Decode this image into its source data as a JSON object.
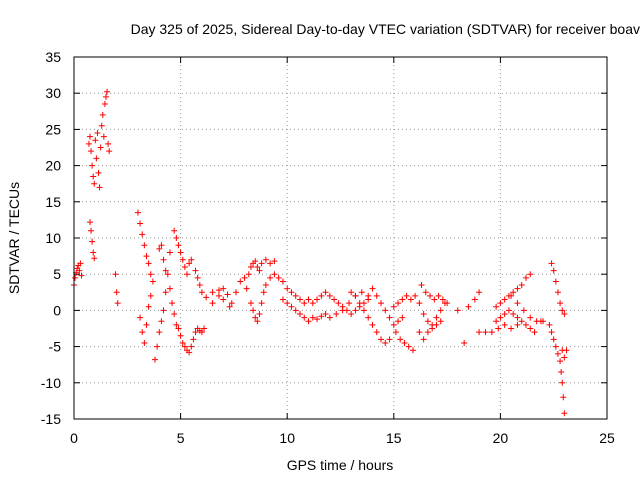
{
  "chart_data": {
    "type": "scatter",
    "title": "Day 325 of 2025, Sidereal Day-to-day VTEC variation (SDTVAR) for receiver boav",
    "xlabel": "GPS time / hours",
    "ylabel": "SDTVAR / TECUs",
    "xlim": [
      0,
      25
    ],
    "ylim": [
      -15,
      35
    ],
    "xticks": [
      0,
      5,
      10,
      15,
      20,
      25
    ],
    "yticks": [
      -15,
      -10,
      -5,
      0,
      5,
      10,
      15,
      20,
      25,
      30,
      35
    ],
    "grid": true,
    "marker": "+",
    "series": [
      {
        "name": "SDTVAR",
        "color": "#ff0000",
        "points": [
          [
            0.0,
            3.5
          ],
          [
            0.05,
            4.5
          ],
          [
            0.1,
            5.2
          ],
          [
            0.15,
            5.8
          ],
          [
            0.2,
            6.2
          ],
          [
            0.25,
            5.5
          ],
          [
            0.3,
            6.5
          ],
          [
            0.35,
            4.8
          ],
          [
            0.7,
            23.0
          ],
          [
            0.75,
            24.0
          ],
          [
            0.8,
            22.0
          ],
          [
            0.85,
            20.0
          ],
          [
            0.9,
            18.5
          ],
          [
            0.95,
            17.5
          ],
          [
            1.0,
            23.5
          ],
          [
            1.05,
            21.0
          ],
          [
            1.1,
            24.5
          ],
          [
            1.15,
            19.0
          ],
          [
            1.2,
            17.0
          ],
          [
            1.25,
            22.5
          ],
          [
            1.3,
            25.5
          ],
          [
            1.35,
            27.0
          ],
          [
            1.4,
            24.0
          ],
          [
            1.45,
            28.5
          ],
          [
            1.5,
            29.5
          ],
          [
            1.55,
            30.2
          ],
          [
            1.6,
            23.0
          ],
          [
            1.65,
            22.0
          ],
          [
            0.75,
            12.2
          ],
          [
            0.8,
            11.0
          ],
          [
            0.85,
            9.5
          ],
          [
            0.9,
            8.0
          ],
          [
            0.95,
            7.2
          ],
          [
            1.95,
            5.0
          ],
          [
            2.0,
            2.5
          ],
          [
            2.05,
            1.0
          ],
          [
            3.0,
            13.5
          ],
          [
            3.1,
            12.0
          ],
          [
            3.2,
            10.5
          ],
          [
            3.3,
            9.0
          ],
          [
            3.4,
            7.5
          ],
          [
            3.5,
            6.5
          ],
          [
            3.6,
            5.0
          ],
          [
            3.7,
            4.0
          ],
          [
            3.1,
            -1.0
          ],
          [
            3.2,
            -3.0
          ],
          [
            3.3,
            -4.5
          ],
          [
            3.4,
            -2.0
          ],
          [
            3.5,
            0.5
          ],
          [
            3.6,
            2.0
          ],
          [
            3.8,
            -6.8
          ],
          [
            3.9,
            -5.0
          ],
          [
            4.0,
            -3.0
          ],
          [
            4.1,
            -1.5
          ],
          [
            4.2,
            0.0
          ],
          [
            4.3,
            2.5
          ],
          [
            4.4,
            5.0
          ],
          [
            4.5,
            8.0
          ],
          [
            4.0,
            8.5
          ],
          [
            4.1,
            9.0
          ],
          [
            4.2,
            7.0
          ],
          [
            4.3,
            5.5
          ],
          [
            4.5,
            3.0
          ],
          [
            4.6,
            1.0
          ],
          [
            4.7,
            -0.5
          ],
          [
            4.8,
            -2.0
          ],
          [
            4.7,
            11.0
          ],
          [
            4.8,
            10.0
          ],
          [
            4.9,
            9.0
          ],
          [
            5.0,
            8.0
          ],
          [
            5.1,
            7.0
          ],
          [
            5.2,
            6.0
          ],
          [
            5.3,
            5.0
          ],
          [
            5.4,
            6.5
          ],
          [
            5.5,
            7.0
          ],
          [
            4.9,
            -2.5
          ],
          [
            5.0,
            -3.5
          ],
          [
            5.1,
            -4.5
          ],
          [
            5.2,
            -5.0
          ],
          [
            5.3,
            -5.5
          ],
          [
            5.4,
            -5.8
          ],
          [
            5.5,
            -5.0
          ],
          [
            5.6,
            -4.0
          ],
          [
            5.7,
            -3.0
          ],
          [
            5.8,
            -2.5
          ],
          [
            5.9,
            -2.8
          ],
          [
            6.0,
            -3.0
          ],
          [
            6.1,
            -2.5
          ],
          [
            5.7,
            5.5
          ],
          [
            5.8,
            4.5
          ],
          [
            5.9,
            3.5
          ],
          [
            6.0,
            2.5
          ],
          [
            6.2,
            1.8
          ],
          [
            6.5,
            2.5
          ],
          [
            6.8,
            2.0
          ],
          [
            7.0,
            1.5
          ],
          [
            7.2,
            2.2
          ],
          [
            7.4,
            1.0
          ],
          [
            7.6,
            2.5
          ],
          [
            7.8,
            4.0
          ],
          [
            8.0,
            4.5
          ],
          [
            6.5,
            1.0
          ],
          [
            6.8,
            2.8
          ],
          [
            7.0,
            3.0
          ],
          [
            7.3,
            0.5
          ],
          [
            8.1,
            3.0
          ],
          [
            8.2,
            5.0
          ],
          [
            8.3,
            6.0
          ],
          [
            8.4,
            6.5
          ],
          [
            8.5,
            6.8
          ],
          [
            8.6,
            6.0
          ],
          [
            8.7,
            5.5
          ],
          [
            8.8,
            6.5
          ],
          [
            9.0,
            7.0
          ],
          [
            9.2,
            6.5
          ],
          [
            9.4,
            6.8
          ],
          [
            8.3,
            1.0
          ],
          [
            8.4,
            0.0
          ],
          [
            8.5,
            -1.0
          ],
          [
            8.6,
            -1.5
          ],
          [
            8.7,
            -0.5
          ],
          [
            8.8,
            1.0
          ],
          [
            8.9,
            2.5
          ],
          [
            9.0,
            3.5
          ],
          [
            9.2,
            4.5
          ],
          [
            9.4,
            5.0
          ],
          [
            9.6,
            4.5
          ],
          [
            9.8,
            4.0
          ],
          [
            10.0,
            3.0
          ],
          [
            10.2,
            2.5
          ],
          [
            10.4,
            2.0
          ],
          [
            10.6,
            1.5
          ],
          [
            10.8,
            1.0
          ],
          [
            11.0,
            1.5
          ],
          [
            11.2,
            1.0
          ],
          [
            11.4,
            1.5
          ],
          [
            11.6,
            2.0
          ],
          [
            11.8,
            2.5
          ],
          [
            9.8,
            1.5
          ],
          [
            10.0,
            1.0
          ],
          [
            10.2,
            0.5
          ],
          [
            10.4,
            0.0
          ],
          [
            10.6,
            -0.5
          ],
          [
            10.8,
            -1.0
          ],
          [
            11.0,
            -1.5
          ],
          [
            11.2,
            -1.0
          ],
          [
            11.4,
            -1.2
          ],
          [
            11.6,
            -0.8
          ],
          [
            11.8,
            -0.5
          ],
          [
            12.0,
            2.0
          ],
          [
            12.2,
            1.5
          ],
          [
            12.4,
            1.0
          ],
          [
            12.6,
            0.5
          ],
          [
            12.8,
            0.0
          ],
          [
            13.0,
            -0.5
          ],
          [
            13.2,
            0.0
          ],
          [
            13.4,
            0.5
          ],
          [
            13.6,
            1.0
          ],
          [
            13.8,
            1.5
          ],
          [
            12.0,
            -1.0
          ],
          [
            12.3,
            -0.5
          ],
          [
            12.6,
            0.0
          ],
          [
            12.9,
            1.0
          ],
          [
            13.2,
            2.0
          ],
          [
            13.5,
            2.5
          ],
          [
            13.8,
            2.0
          ],
          [
            13.0,
            2.5
          ],
          [
            13.2,
            2.0
          ],
          [
            13.4,
            1.0
          ],
          [
            13.6,
            0.0
          ],
          [
            13.8,
            -1.0
          ],
          [
            14.0,
            -2.0
          ],
          [
            14.2,
            -3.0
          ],
          [
            14.4,
            -4.0
          ],
          [
            14.6,
            -4.5
          ],
          [
            14.8,
            -4.0
          ],
          [
            14.0,
            3.0
          ],
          [
            14.2,
            2.0
          ],
          [
            14.4,
            1.0
          ],
          [
            14.6,
            0.0
          ],
          [
            14.8,
            -1.0
          ],
          [
            15.0,
            -2.0
          ],
          [
            15.2,
            -1.5
          ],
          [
            15.4,
            -1.0
          ],
          [
            15.1,
            -3.0
          ],
          [
            15.3,
            -4.0
          ],
          [
            15.5,
            -4.5
          ],
          [
            15.7,
            -5.0
          ],
          [
            15.9,
            -5.5
          ],
          [
            15.0,
            0.5
          ],
          [
            15.2,
            1.0
          ],
          [
            15.4,
            1.5
          ],
          [
            15.6,
            2.0
          ],
          [
            15.8,
            1.5
          ],
          [
            16.0,
            2.0
          ],
          [
            16.2,
            1.0
          ],
          [
            16.4,
            -0.5
          ],
          [
            16.6,
            -1.5
          ],
          [
            16.8,
            -2.0
          ],
          [
            17.0,
            -1.0
          ],
          [
            17.2,
            0.0
          ],
          [
            17.4,
            1.0
          ],
          [
            16.3,
            3.5
          ],
          [
            16.5,
            2.5
          ],
          [
            16.7,
            2.0
          ],
          [
            16.9,
            1.5
          ],
          [
            17.1,
            2.0
          ],
          [
            17.3,
            1.5
          ],
          [
            17.5,
            1.0
          ],
          [
            16.2,
            -3.0
          ],
          [
            16.4,
            -4.0
          ],
          [
            16.6,
            -3.0
          ],
          [
            16.8,
            -2.5
          ],
          [
            17.0,
            -2.0
          ],
          [
            17.2,
            -1.5
          ],
          [
            18.0,
            0.0
          ],
          [
            18.5,
            0.5
          ],
          [
            18.3,
            -4.5
          ],
          [
            18.8,
            1.5
          ],
          [
            19.0,
            2.5
          ],
          [
            19.0,
            -3.0
          ],
          [
            19.3,
            -3.0
          ],
          [
            19.6,
            -3.0
          ],
          [
            19.9,
            -2.5
          ],
          [
            20.2,
            -2.0
          ],
          [
            20.5,
            -2.5
          ],
          [
            20.8,
            -2.0
          ],
          [
            19.8,
            0.5
          ],
          [
            20.0,
            1.0
          ],
          [
            20.2,
            1.5
          ],
          [
            20.4,
            2.0
          ],
          [
            20.6,
            2.5
          ],
          [
            20.8,
            3.0
          ],
          [
            21.0,
            3.5
          ],
          [
            21.2,
            4.5
          ],
          [
            21.4,
            5.0
          ],
          [
            19.8,
            -1.5
          ],
          [
            20.0,
            -1.0
          ],
          [
            20.2,
            -0.5
          ],
          [
            20.4,
            0.0
          ],
          [
            20.6,
            -0.5
          ],
          [
            20.8,
            -1.0
          ],
          [
            21.0,
            -1.5
          ],
          [
            21.2,
            -2.0
          ],
          [
            21.4,
            -2.5
          ],
          [
            21.6,
            -3.0
          ],
          [
            20.5,
            2.0
          ],
          [
            20.8,
            1.0
          ],
          [
            21.1,
            0.0
          ],
          [
            21.4,
            -1.0
          ],
          [
            21.7,
            -1.5
          ],
          [
            21.9,
            -1.5
          ],
          [
            22.0,
            -1.5
          ],
          [
            22.4,
            6.5
          ],
          [
            22.5,
            5.5
          ],
          [
            22.6,
            4.0
          ],
          [
            22.7,
            2.5
          ],
          [
            22.8,
            1.0
          ],
          [
            22.9,
            0.0
          ],
          [
            23.0,
            -0.5
          ],
          [
            22.3,
            -2.0
          ],
          [
            22.4,
            -3.0
          ],
          [
            22.5,
            -4.0
          ],
          [
            22.6,
            -5.0
          ],
          [
            22.7,
            -6.0
          ],
          [
            22.8,
            -7.0
          ],
          [
            22.85,
            -8.5
          ],
          [
            22.9,
            -10.0
          ],
          [
            22.95,
            -12.0
          ],
          [
            23.0,
            -14.2
          ],
          [
            22.9,
            -5.5
          ],
          [
            23.0,
            -6.5
          ],
          [
            23.1,
            -5.5
          ]
        ]
      }
    ]
  }
}
